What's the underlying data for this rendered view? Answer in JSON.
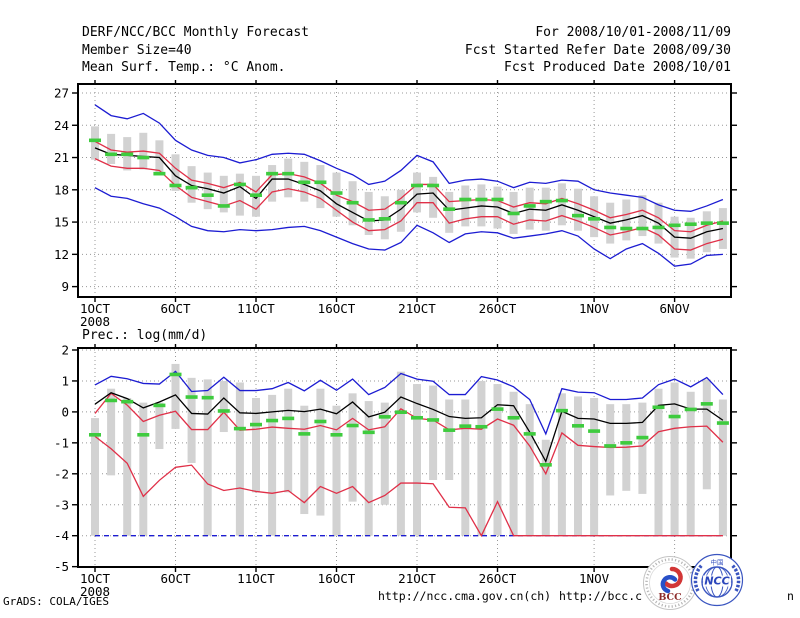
{
  "header": {
    "title": "DERF/NCC/BCC Monthly Forecast",
    "member_size": "Member Size=40",
    "variable_label": "Mean Surf. Temp.: °C Anom.",
    "period": "For 2008/10/01-2008/11/09",
    "refer_date": "Fcst Started Refer Date 2008/09/30",
    "produced_date": "Fcst Produced Date 2008/10/01"
  },
  "footer": {
    "grads_credit": "GrADS: COLA/IGES",
    "url_ncc": "http://ncc.cma.gov.cn(ch)",
    "url_bcc": "http://bcc.c",
    "url_bcc_tail": "n",
    "bcc_logo_text": "BCC",
    "ncc_logo_text": "NCC",
    "ncc_logo_top_text": "中国"
  },
  "colors": {
    "envelope_blue": "#1c1cd2",
    "tercile_red": "#e03048",
    "mean_black": "#000000",
    "obs_green": "#3ecb3e",
    "spread_gray": "#d2d2d2",
    "grid_gray": "#989898"
  },
  "chart_data": [
    {
      "type": "line",
      "name": "temperature",
      "title": "Mean Surf. Temp.: °C Anom.",
      "days": 40,
      "ylim": [
        8.0,
        27.85
      ],
      "yticks": [
        9,
        12,
        15,
        18,
        21,
        24,
        27
      ],
      "grid": true,
      "x_ticks": [
        {
          "day": 1,
          "label": "1OCT",
          "sublabel": "2008"
        },
        {
          "day": 6,
          "label": "6OCT"
        },
        {
          "day": 11,
          "label": "11OCT"
        },
        {
          "day": 16,
          "label": "16OCT"
        },
        {
          "day": 21,
          "label": "21OCT"
        },
        {
          "day": 26,
          "label": "26OCT"
        },
        {
          "day": 32,
          "label": "1NOV"
        },
        {
          "day": 37,
          "label": "6NOV"
        }
      ],
      "series": [
        {
          "name": "member-spread-bars",
          "style": "bars",
          "color": "#d2d2d2",
          "top": [
            23.9,
            23.2,
            22.9,
            23.3,
            22.6,
            21.3,
            20.2,
            19.6,
            19.3,
            19.5,
            19.3,
            20.3,
            20.9,
            20.6,
            20.3,
            19.6,
            18.8,
            17.8,
            17.4,
            18.0,
            19.6,
            19.2,
            17.8,
            18.4,
            18.5,
            18.3,
            17.8,
            18.2,
            18.2,
            18.6,
            18.1,
            17.4,
            16.8,
            17.1,
            17.5,
            16.8,
            15.5,
            15.4,
            16.0,
            16.3
          ],
          "bottom": [
            20.8,
            20.4,
            19.8,
            19.9,
            19.5,
            17.9,
            16.8,
            16.2,
            15.9,
            15.6,
            15.5,
            16.9,
            17.3,
            16.9,
            16.3,
            15.5,
            14.7,
            13.8,
            13.4,
            14.1,
            15.9,
            15.4,
            14.0,
            14.6,
            14.6,
            14.4,
            13.9,
            14.3,
            14.2,
            14.7,
            14.2,
            13.6,
            13.0,
            13.3,
            13.7,
            13.0,
            11.7,
            11.6,
            12.2,
            12.5
          ]
        },
        {
          "name": "blue-max-line",
          "style": "line",
          "color": "#1c1cd2",
          "values": [
            25.9,
            24.9,
            24.6,
            25.1,
            24.2,
            22.6,
            21.7,
            21.2,
            21.0,
            20.5,
            20.8,
            21.3,
            21.4,
            21.3,
            20.7,
            20.0,
            19.4,
            18.5,
            18.8,
            19.8,
            21.2,
            20.6,
            18.6,
            18.9,
            19.0,
            18.8,
            18.2,
            18.7,
            18.6,
            18.9,
            18.8,
            18.0,
            17.7,
            17.5,
            17.3,
            16.6,
            16.1,
            16.0,
            16.5,
            17.1
          ]
        },
        {
          "name": "blue-min-line",
          "style": "line",
          "color": "#1c1cd2",
          "values": [
            18.2,
            17.4,
            17.2,
            16.7,
            16.3,
            15.5,
            14.6,
            14.2,
            14.1,
            14.3,
            14.2,
            14.3,
            14.5,
            14.6,
            14.2,
            13.6,
            13.0,
            12.5,
            12.4,
            13.1,
            14.7,
            14.0,
            13.1,
            13.9,
            14.1,
            14.0,
            13.5,
            13.7,
            13.9,
            14.2,
            13.7,
            12.5,
            11.6,
            12.5,
            13.0,
            12.1,
            10.9,
            11.1,
            11.9,
            12.0
          ]
        },
        {
          "name": "red-upper-line",
          "style": "line",
          "color": "#e03048",
          "values": [
            22.5,
            21.7,
            21.5,
            21.6,
            21.4,
            20.0,
            18.9,
            18.6,
            18.2,
            18.7,
            17.8,
            19.4,
            19.5,
            19.2,
            18.6,
            17.5,
            16.9,
            16.1,
            16.2,
            17.2,
            18.5,
            18.5,
            16.9,
            17.0,
            17.1,
            17.0,
            16.4,
            16.8,
            16.7,
            17.2,
            16.7,
            16.1,
            15.4,
            15.7,
            16.1,
            15.4,
            14.2,
            14.1,
            14.7,
            15.1
          ]
        },
        {
          "name": "red-lower-line",
          "style": "line",
          "color": "#e03048",
          "values": [
            20.9,
            20.2,
            20.0,
            20.0,
            19.8,
            18.4,
            17.3,
            16.9,
            16.5,
            17.0,
            16.2,
            17.8,
            18.1,
            17.8,
            17.2,
            16.1,
            15.0,
            14.2,
            14.3,
            15.1,
            16.8,
            16.8,
            14.9,
            15.3,
            15.5,
            15.5,
            14.8,
            15.2,
            15.1,
            15.6,
            15.1,
            14.5,
            13.8,
            14.1,
            14.5,
            13.8,
            12.5,
            12.4,
            13.0,
            13.4
          ]
        },
        {
          "name": "black-mean-line",
          "style": "line",
          "color": "#000000",
          "values": [
            21.9,
            21.3,
            21.2,
            21.1,
            21.0,
            19.3,
            18.4,
            18.1,
            17.7,
            18.3,
            17.2,
            19.0,
            19.0,
            18.5,
            17.9,
            16.7,
            15.9,
            15.1,
            15.2,
            16.2,
            17.6,
            17.7,
            16.1,
            16.3,
            16.5,
            16.4,
            15.8,
            16.2,
            16.1,
            16.6,
            16.1,
            15.5,
            14.9,
            15.2,
            15.6,
            14.9,
            13.6,
            13.5,
            14.1,
            14.4
          ]
        },
        {
          "name": "green-dash-series",
          "style": "dash-marks",
          "color": "#3ecb3e",
          "values": [
            22.6,
            21.3,
            21.3,
            21.0,
            19.5,
            18.4,
            18.2,
            17.5,
            16.5,
            18.5,
            17.5,
            19.5,
            19.5,
            18.7,
            18.7,
            17.7,
            16.8,
            15.2,
            15.3,
            16.8,
            18.4,
            18.4,
            16.2,
            17.1,
            17.1,
            17.1,
            15.8,
            16.5,
            16.9,
            17.0,
            15.6,
            15.3,
            14.5,
            14.4,
            14.4,
            14.5,
            14.7,
            14.8,
            14.9,
            14.9
          ]
        }
      ]
    },
    {
      "type": "line",
      "name": "precipitation",
      "title": "Prec.: log(mm/d)",
      "days": 40,
      "ylim": [
        -5.01,
        2.06
      ],
      "yticks": [
        -5,
        -4,
        -3,
        -2,
        -1,
        0,
        1,
        2
      ],
      "grid": true,
      "x_ticks": [
        {
          "day": 1,
          "label": "1OCT",
          "sublabel": "2008"
        },
        {
          "day": 6,
          "label": "6OCT"
        },
        {
          "day": 11,
          "label": "11OCT"
        },
        {
          "day": 16,
          "label": "16OCT"
        },
        {
          "day": 21,
          "label": "21OCT"
        },
        {
          "day": 26,
          "label": "26OCT"
        },
        {
          "day": 32,
          "label": "1NOV"
        },
        {
          "day": 37,
          "label": "6NOV"
        }
      ],
      "series": [
        {
          "name": "member-spread-bars",
          "style": "bars",
          "color": "#d2d2d2",
          "top": [
            -0.2,
            0.75,
            0.45,
            0.3,
            0.3,
            1.55,
            1.1,
            1.05,
            1.0,
            0.95,
            0.45,
            0.55,
            0.75,
            0.2,
            0.75,
            0.2,
            0.6,
            0.35,
            0.3,
            1.3,
            0.9,
            0.85,
            0.4,
            0.4,
            1.0,
            0.9,
            0.65,
            0.25,
            -0.9,
            0.6,
            0.5,
            0.45,
            0.25,
            0.25,
            0.3,
            0.75,
            0.95,
            0.65,
            1.05,
            0.4
          ],
          "bottom": [
            -4,
            -2.05,
            -4,
            -4,
            -1.2,
            -0.55,
            -1.65,
            -4,
            -0.65,
            -4,
            -2.6,
            -4,
            -2.6,
            -3.3,
            -3.35,
            -4,
            -2.9,
            -4,
            -3.0,
            -4,
            -4,
            -2.2,
            -2.2,
            -4,
            -4,
            -4,
            -4,
            -4,
            -4,
            -4,
            -4,
            -4,
            -2.7,
            -2.55,
            -2.65,
            -4,
            -4,
            -4,
            -2.5,
            -4
          ]
        },
        {
          "name": "blue-lower-bound-dashed",
          "style": "dashline",
          "color": "#1c1cd2",
          "flat_value": -4.0
        },
        {
          "name": "blue-max-line",
          "style": "line",
          "color": "#1c1cd2",
          "values": [
            0.87,
            1.15,
            1.07,
            0.92,
            0.9,
            1.31,
            0.66,
            0.69,
            1.12,
            0.69,
            0.69,
            0.75,
            0.95,
            0.68,
            1.02,
            0.7,
            1.06,
            0.56,
            0.79,
            1.24,
            1.06,
            0.99,
            0.56,
            0.56,
            1.14,
            1.03,
            0.81,
            0.4,
            -0.71,
            0.75,
            0.64,
            0.62,
            0.4,
            0.4,
            0.45,
            0.88,
            1.06,
            0.81,
            1.11,
            0.56
          ]
        },
        {
          "name": "red-upper-line",
          "style": "line",
          "color": "#e03048",
          "values": [
            -0.05,
            0.6,
            0.22,
            -0.31,
            -0.11,
            0.02,
            -0.57,
            -0.57,
            -0.01,
            -0.59,
            -0.56,
            -0.49,
            -0.53,
            -0.56,
            -0.44,
            -0.58,
            -0.21,
            -0.58,
            -0.48,
            0.1,
            -0.21,
            -0.26,
            -0.58,
            -0.53,
            -0.56,
            -0.23,
            -0.43,
            -1.1,
            -2.0,
            -0.68,
            -1.08,
            -1.12,
            -1.15,
            -1.14,
            -1.1,
            -0.64,
            -0.53,
            -0.48,
            -0.46,
            -0.98
          ]
        },
        {
          "name": "red-lower-line",
          "style": "line",
          "color": "#e03048",
          "values": [
            -0.79,
            -1.19,
            -1.66,
            -2.73,
            -2.21,
            -1.79,
            -1.72,
            -2.33,
            -2.54,
            -2.46,
            -2.57,
            -2.63,
            -2.54,
            -2.93,
            -2.41,
            -2.63,
            -2.41,
            -2.93,
            -2.7,
            -2.3,
            -2.3,
            -2.32,
            -3.08,
            -3.1,
            -4.0,
            -2.9,
            -4.0,
            -4.0,
            -4.0,
            -4.0,
            -4.0,
            -4.0,
            -4.0,
            -4.0,
            -4.0,
            -4.0,
            -4.0,
            -4.0,
            -4.0,
            -4.0
          ]
        },
        {
          "name": "black-mean-line",
          "style": "line",
          "color": "#000000",
          "values": [
            0.25,
            0.62,
            0.43,
            0.13,
            0.32,
            0.55,
            -0.05,
            -0.07,
            0.45,
            -0.03,
            -0.05,
            0.0,
            0.05,
            0.01,
            0.09,
            -0.06,
            0.32,
            -0.16,
            -0.01,
            0.48,
            0.27,
            0.08,
            -0.15,
            -0.21,
            -0.19,
            0.23,
            0.2,
            -0.65,
            -1.6,
            0.02,
            -0.21,
            -0.23,
            -0.37,
            -0.37,
            -0.34,
            0.21,
            0.26,
            0.09,
            0.09,
            -0.27
          ]
        },
        {
          "name": "green-dash-series",
          "style": "dash-marks",
          "color": "#3ecb3e",
          "values": [
            -0.74,
            0.37,
            0.33,
            -0.74,
            0.21,
            1.21,
            0.48,
            0.46,
            0.03,
            -0.54,
            -0.41,
            -0.28,
            -0.21,
            -0.71,
            -0.31,
            -0.74,
            -0.44,
            -0.66,
            -0.16,
            -0.01,
            -0.19,
            -0.26,
            -0.59,
            -0.46,
            -0.48,
            0.09,
            -0.19,
            -0.71,
            -1.71,
            0.04,
            -0.45,
            -0.62,
            -1.1,
            -1.0,
            -0.83,
            0.15,
            -0.15,
            0.08,
            0.26,
            -0.36
          ]
        }
      ]
    }
  ]
}
